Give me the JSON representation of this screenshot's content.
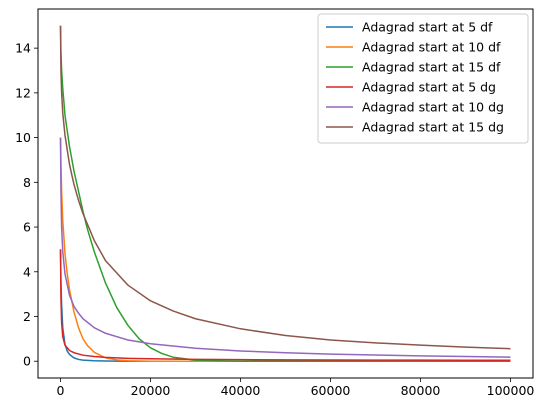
{
  "chart_data": {
    "type": "line",
    "title": "",
    "xlabel": "",
    "ylabel": "",
    "xlim": [
      -5000,
      105000
    ],
    "ylim": [
      -0.75,
      15.75
    ],
    "x_ticks": [
      0,
      20000,
      40000,
      60000,
      80000,
      100000
    ],
    "x_tick_labels": [
      "0",
      "20000",
      "40000",
      "60000",
      "80000",
      "100000"
    ],
    "y_ticks": [
      0,
      2,
      4,
      6,
      8,
      10,
      12,
      14
    ],
    "y_tick_labels": [
      "0",
      "2",
      "4",
      "6",
      "8",
      "10",
      "12",
      "14"
    ],
    "grid": false,
    "legend_position": "top-right",
    "series": [
      {
        "name": "Adagrad start at 5 df",
        "color": "#1f77b4",
        "x": [
          0,
          100,
          250,
          500,
          1000,
          1500,
          2000,
          3000,
          4000,
          5000,
          7500,
          10000,
          15000,
          20000,
          30000,
          50000,
          75000,
          100000
        ],
        "y": [
          5.0,
          3.6,
          2.5,
          1.5,
          0.75,
          0.45,
          0.3,
          0.15,
          0.08,
          0.05,
          0.02,
          0.01,
          0.0,
          0.0,
          0.0,
          0.0,
          0.0,
          0.0
        ]
      },
      {
        "name": "Adagrad start at 10 df",
        "color": "#ff7f0e",
        "x": [
          0,
          100,
          250,
          500,
          1000,
          1500,
          2000,
          3000,
          4000,
          5000,
          6000,
          7500,
          10000,
          12500,
          15000,
          20000,
          30000,
          50000,
          75000,
          100000
        ],
        "y": [
          10.0,
          8.8,
          7.6,
          6.3,
          4.8,
          3.9,
          3.2,
          2.2,
          1.5,
          1.0,
          0.7,
          0.4,
          0.15,
          0.06,
          0.02,
          0.0,
          0.0,
          0.0,
          0.0,
          0.0
        ]
      },
      {
        "name": "Adagrad start at 15 df",
        "color": "#2ca02c",
        "x": [
          0,
          100,
          250,
          500,
          1000,
          2000,
          3000,
          4000,
          5000,
          6000,
          7500,
          10000,
          12500,
          15000,
          17500,
          20000,
          22500,
          25000,
          30000,
          40000,
          50000,
          75000,
          100000
        ],
        "y": [
          15.0,
          13.8,
          13.0,
          12.2,
          11.0,
          9.6,
          8.5,
          7.6,
          6.7,
          5.9,
          4.9,
          3.5,
          2.4,
          1.6,
          1.0,
          0.6,
          0.35,
          0.18,
          0.05,
          0.0,
          0.0,
          0.0,
          0.0
        ]
      },
      {
        "name": "Adagrad start at 5 dg",
        "color": "#d62728",
        "x": [
          0,
          100,
          250,
          500,
          1000,
          2000,
          3000,
          5000,
          7500,
          10000,
          15000,
          20000,
          30000,
          40000,
          50000,
          60000,
          70000,
          80000,
          90000,
          100000
        ],
        "y": [
          5.0,
          2.8,
          1.7,
          1.1,
          0.72,
          0.48,
          0.38,
          0.27,
          0.21,
          0.17,
          0.13,
          0.11,
          0.085,
          0.07,
          0.062,
          0.055,
          0.05,
          0.047,
          0.044,
          0.042
        ]
      },
      {
        "name": "Adagrad start at 10 dg",
        "color": "#9467bd",
        "x": [
          0,
          100,
          250,
          500,
          1000,
          2000,
          3000,
          4000,
          5000,
          7500,
          10000,
          15000,
          20000,
          30000,
          40000,
          50000,
          60000,
          70000,
          80000,
          90000,
          100000
        ],
        "y": [
          10.0,
          7.6,
          6.0,
          4.9,
          3.9,
          2.95,
          2.45,
          2.15,
          1.9,
          1.5,
          1.25,
          0.95,
          0.78,
          0.58,
          0.46,
          0.38,
          0.32,
          0.28,
          0.24,
          0.21,
          0.18
        ]
      },
      {
        "name": "Adagrad start at 15 dg",
        "color": "#8c564b",
        "x": [
          0,
          100,
          250,
          500,
          1000,
          2000,
          3000,
          4000,
          5000,
          7500,
          10000,
          15000,
          20000,
          25000,
          30000,
          40000,
          50000,
          60000,
          70000,
          80000,
          90000,
          100000
        ],
        "y": [
          15.0,
          13.0,
          12.0,
          11.1,
          10.1,
          8.8,
          7.9,
          7.2,
          6.6,
          5.4,
          4.5,
          3.4,
          2.7,
          2.25,
          1.9,
          1.45,
          1.15,
          0.95,
          0.82,
          0.72,
          0.63,
          0.56
        ]
      }
    ]
  }
}
